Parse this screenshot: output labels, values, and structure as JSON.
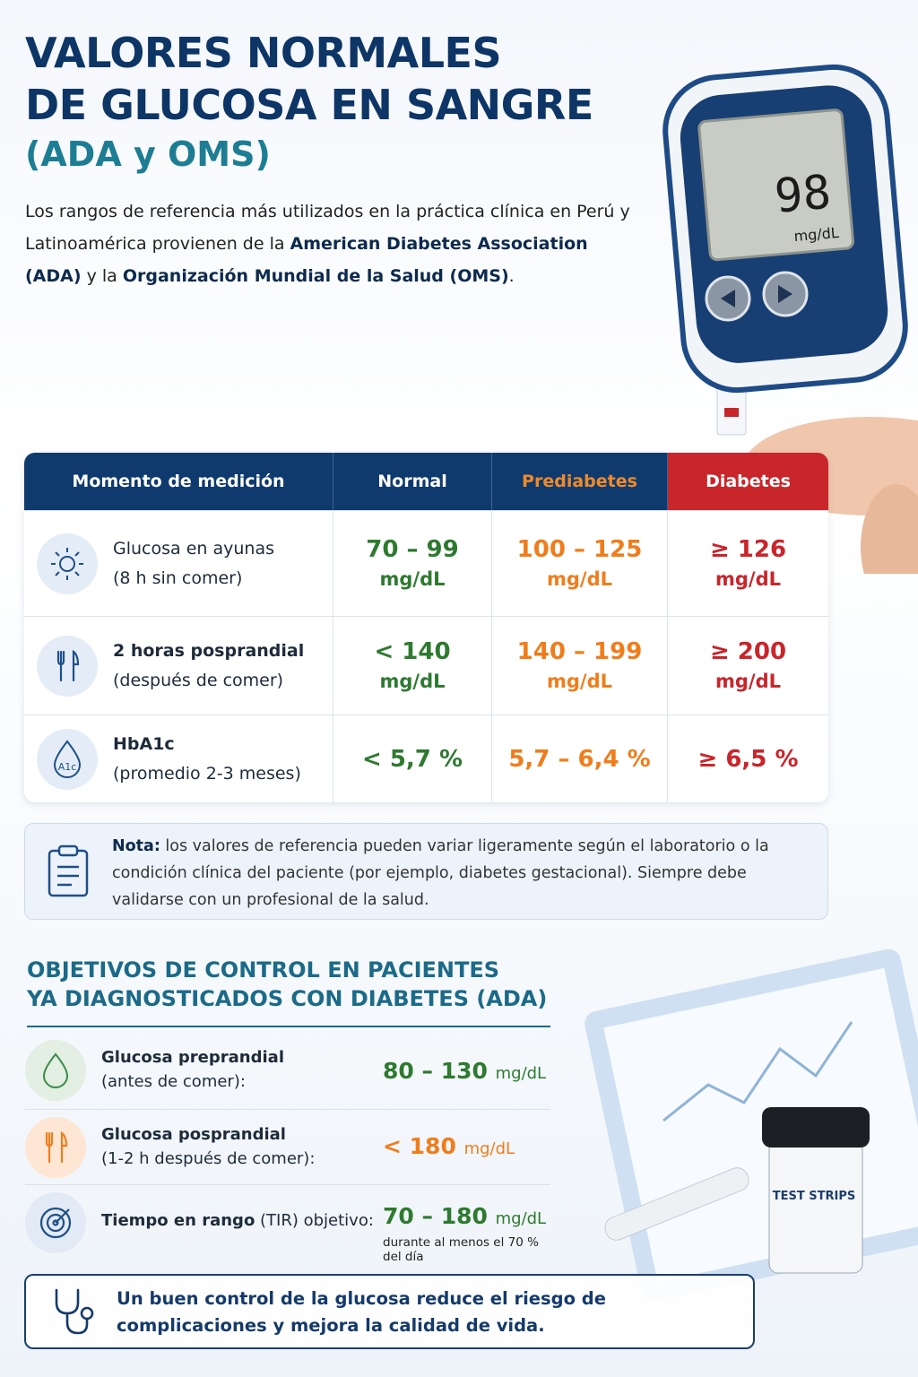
{
  "header": {
    "title_line1": "VALORES NORMALES",
    "title_line2": "DE GLUCOSA EN SANGRE",
    "subtitle": "(ADA y OMS)",
    "intro": [
      "Los rangos de referencia más utilizados en la práctica clínica en Perú y Latinoamérica provienen de la ",
      "American Diabetes Association (ADA)",
      " y la ",
      "Organización Mundial de la Salud (OMS)",
      "."
    ]
  },
  "meter": {
    "reading": "98",
    "unit": "mg/dL"
  },
  "table": {
    "columns": [
      "Momento de medición",
      "Normal",
      "Prediabetes",
      "Diabetes"
    ],
    "rows": [
      {
        "label": "Glucosa en ayunas",
        "detail": "(8 h sin comer)",
        "normal": [
          "70 – 99",
          "mg/dL"
        ],
        "prediabetes": [
          "100 – 125",
          "mg/dL"
        ],
        "diabetes": [
          "≥ 126",
          "mg/dL"
        ]
      },
      {
        "label": "2 horas posprandial",
        "detail": "(después de comer)",
        "normal": [
          "< 140",
          "mg/dL"
        ],
        "prediabetes": [
          "140 – 199",
          "mg/dL"
        ],
        "diabetes": [
          "≥ 200",
          "mg/dL"
        ]
      },
      {
        "label": "HbA1c",
        "detail": "(promedio 2-3 meses)",
        "icon_text": "A1c",
        "normal": [
          "< 5,7 %"
        ],
        "prediabetes": [
          "5,7 – 6,4 %"
        ],
        "diabetes": [
          "≥ 6,5 %"
        ]
      }
    ]
  },
  "note": {
    "label": "Nota:",
    "text": " los valores de referencia pueden variar ligeramente según el laboratorio o la condición clínica del paciente (por ejemplo, diabetes gestacional). Siempre debe validarse con un profesional de la salud."
  },
  "objectives": {
    "title_line1": "OBJETIVOS DE CONTROL EN PACIENTES",
    "title_line2": "YA DIAGNOSTICADOS CON DIABETES (ADA)",
    "items": [
      {
        "label": "Glucosa preprandial",
        "detail": "(antes de comer):",
        "value": "80 – 130",
        "unit": "mg/dL"
      },
      {
        "label": "Glucosa posprandial",
        "detail": "(1-2 h después de comer):",
        "value": "< 180",
        "unit": "mg/dL"
      },
      {
        "label": "Tiempo en rango",
        "detail": " (TIR) objetivo:",
        "value": "70 – 180",
        "unit": "mg/dL",
        "note": "durante al menos el 70 % del día"
      }
    ]
  },
  "strips_label": "TEST STRIPS",
  "footer": "Un buen control de la glucosa reduce el riesgo de complicaciones y mejora la calidad de vida."
}
